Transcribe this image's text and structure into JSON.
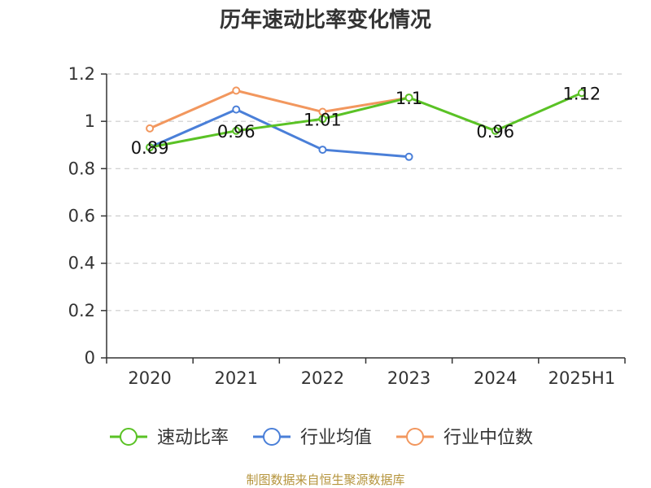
{
  "colors": {
    "速动比率": "#5ac225",
    "行业均值": "#4a7fd8",
    "行业中位数": "#f2975e",
    "source": "#b5943c"
  },
  "chart_data": {
    "type": "line",
    "title": "历年速动比率变化情况",
    "categories": [
      "2020",
      "2021",
      "2022",
      "2023",
      "2024",
      "2025H1"
    ],
    "ylim": [
      0,
      1.2
    ],
    "yticks": [
      "0",
      "0.2",
      "0.4",
      "0.6",
      "0.8",
      "1",
      "1.2"
    ],
    "grid": true,
    "legend_position": "bottom",
    "series": [
      {
        "name": "速动比率",
        "values": [
          0.89,
          0.96,
          1.01,
          1.1,
          0.96,
          1.12
        ],
        "labels": [
          "0.89",
          "0.96",
          "1.01",
          "1.1",
          "0.96",
          "1.12"
        ]
      },
      {
        "name": "行业均值",
        "values": [
          0.89,
          1.05,
          0.88,
          0.85,
          null,
          null
        ]
      },
      {
        "name": "行业中位数",
        "values": [
          0.97,
          1.13,
          1.04,
          1.1,
          null,
          null
        ]
      }
    ]
  },
  "source": "制图数据来自恒生聚源数据库"
}
